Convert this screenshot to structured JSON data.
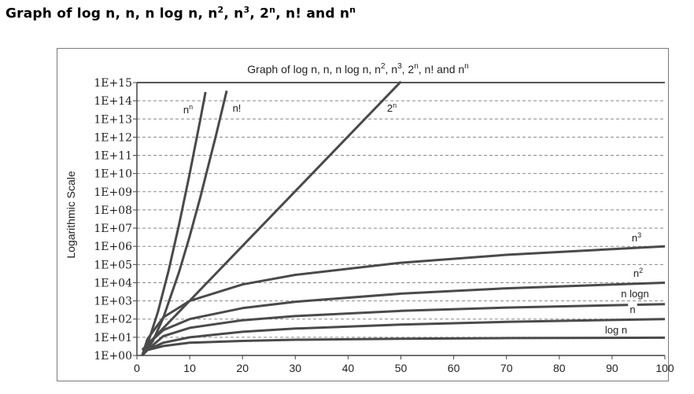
{
  "page": {
    "title": "Graph of log n, n, n log n, n2, n3, 2n, n! and nn",
    "title_parts": [
      {
        "t": "Graph of log n, n, n log n, n",
        "sup": false
      },
      {
        "t": "2",
        "sup": true
      },
      {
        "t": ", n",
        "sup": false
      },
      {
        "t": "3",
        "sup": true
      },
      {
        "t": ", 2",
        "sup": false
      },
      {
        "t": "n",
        "sup": true
      },
      {
        "t": ", n! and n",
        "sup": false
      },
      {
        "t": "n",
        "sup": true
      }
    ]
  },
  "chart_data": {
    "type": "line",
    "title": "Graph of log n, n, n log n, n2, n3, 2n, n! and nn",
    "title_parts": [
      {
        "t": "Graph of log n, n, n log n, n",
        "sup": false
      },
      {
        "t": "2",
        "sup": true
      },
      {
        "t": ", n",
        "sup": false
      },
      {
        "t": "3",
        "sup": true
      },
      {
        "t": ", 2",
        "sup": false
      },
      {
        "t": "n",
        "sup": true
      },
      {
        "t": ", n! and n",
        "sup": false
      },
      {
        "t": "n",
        "sup": true
      }
    ],
    "ylabel": "Logarithmic Scale",
    "xlabel": "",
    "yscale": "log",
    "xlim": [
      0,
      100
    ],
    "ylim": [
      1,
      1000000000000000.0
    ],
    "x_ticks": [
      0,
      10,
      20,
      30,
      40,
      50,
      60,
      70,
      80,
      90,
      100
    ],
    "y_ticks": [
      {
        "value": 1,
        "label": "1E+00"
      },
      {
        "value": 10,
        "label": "1E+01"
      },
      {
        "value": 100,
        "label": "1E+02"
      },
      {
        "value": 1000,
        "label": "1E+03"
      },
      {
        "value": 10000,
        "label": "1E+04"
      },
      {
        "value": 100000,
        "label": "1E+05"
      },
      {
        "value": 1000000,
        "label": "1E+06"
      },
      {
        "value": 10000000,
        "label": "1E+07"
      },
      {
        "value": 100000000,
        "label": "1E+08"
      },
      {
        "value": 1000000000,
        "label": "1E+09"
      },
      {
        "value": 10000000000,
        "label": "1E+10"
      },
      {
        "value": 100000000000,
        "label": "1E+11"
      },
      {
        "value": 1000000000000,
        "label": "1E+12"
      },
      {
        "value": 10000000000000,
        "label": "1E+13"
      },
      {
        "value": 100000000000000,
        "label": "1E+14"
      },
      {
        "value": 1000000000000000,
        "label": "1E+15"
      }
    ],
    "grid": "horizontal dashed",
    "line_color": "#4a4a4a",
    "series": [
      {
        "name": "log n",
        "label": "log n",
        "x": [
          1,
          2,
          5,
          10,
          20,
          30,
          50,
          70,
          100
        ],
        "values": [
          1,
          2,
          3.3,
          5,
          6.3,
          7.3,
          8.3,
          9,
          9.5
        ]
      },
      {
        "name": "n",
        "label": "n",
        "x": [
          1,
          2,
          5,
          10,
          20,
          30,
          50,
          70,
          100
        ],
        "values": [
          1,
          2,
          5,
          10,
          20,
          30,
          50,
          70,
          100
        ]
      },
      {
        "name": "n log n",
        "label": "n logn",
        "x": [
          1,
          2,
          5,
          10,
          20,
          30,
          50,
          70,
          100
        ],
        "values": [
          1,
          2,
          11.6,
          33,
          86,
          147,
          282,
          429,
          664
        ]
      },
      {
        "name": "n2",
        "label": "n2",
        "label_base": "n",
        "label_sup": "2",
        "x": [
          1,
          2,
          5,
          10,
          20,
          30,
          50,
          70,
          100
        ],
        "values": [
          1,
          4,
          25,
          100,
          400,
          900,
          2500,
          4900,
          10000
        ]
      },
      {
        "name": "n3",
        "label": "n3",
        "label_base": "n",
        "label_sup": "3",
        "x": [
          1,
          2,
          5,
          10,
          20,
          30,
          50,
          70,
          100
        ],
        "values": [
          1,
          8,
          125,
          1000,
          8000,
          27000,
          125000,
          343000,
          1000000
        ]
      },
      {
        "name": "2n",
        "label": "2n",
        "label_base": "2",
        "label_sup": "n",
        "x": [
          1,
          5,
          10,
          20,
          30,
          40,
          50
        ],
        "values": [
          2,
          32,
          1024,
          1048576,
          1073741824,
          1099511627776,
          1125899906842624
        ]
      },
      {
        "name": "n!",
        "label": "n!",
        "x": [
          1,
          3,
          5,
          8,
          10,
          12,
          15,
          17
        ],
        "values": [
          1,
          6,
          120,
          40320,
          3628800,
          479001600,
          1307674368000,
          355687428096000
        ]
      },
      {
        "name": "nn",
        "label": "nn",
        "label_base": "n",
        "label_sup": "n",
        "x": [
          1,
          2,
          4,
          6,
          8,
          10,
          12,
          13
        ],
        "values": [
          1,
          4,
          256,
          46656,
          16777216,
          10000000000,
          8916100448256,
          302875106592253
        ]
      }
    ]
  }
}
